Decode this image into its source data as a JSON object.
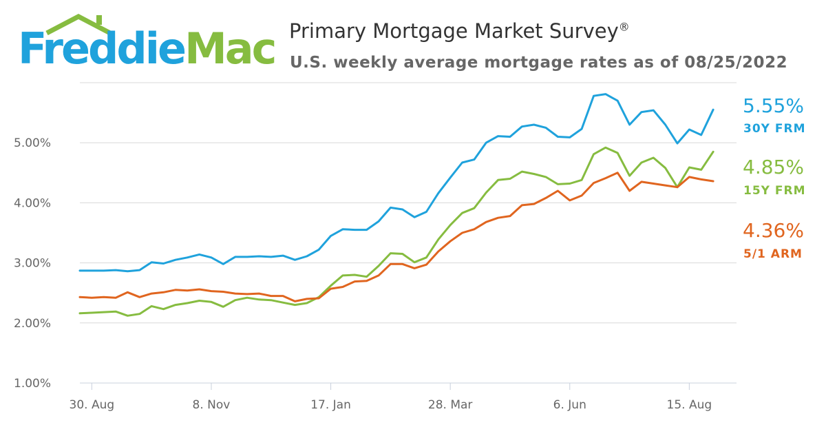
{
  "header": {
    "logo_part1": "Freddie",
    "logo_part2": "Mac",
    "title": "Primary Mortgage Market Survey",
    "title_mark": "®",
    "subtitle": "U.S. weekly average mortgage rates as of 08/25/2022"
  },
  "colors": {
    "brand_blue": "#1fa2dc",
    "brand_green": "#86bc40",
    "grid": "#d8d8d8",
    "axis_text": "#666666"
  },
  "chart_data": {
    "type": "line",
    "title": "Primary Mortgage Market Survey",
    "subtitle": "U.S. weekly average mortgage rates as of 08/25/2022",
    "x_tick_labels": [
      "30. Aug",
      "8. Nov",
      "17. Jan",
      "28. Mar",
      "6. Jun",
      "15. Aug"
    ],
    "x_tick_week_index": [
      1,
      11,
      21,
      31,
      41,
      51
    ],
    "y_tick_labels": [
      "1.00%",
      "2.00%",
      "3.00%",
      "4.00%",
      "5.00%"
    ],
    "y_tick_values": [
      1,
      2,
      3,
      4,
      5
    ],
    "ylim": [
      1,
      6
    ],
    "grid": true,
    "legend": "right-end labels",
    "series": [
      {
        "name": "30Y FRM",
        "end_value_label": "5.55%",
        "color": "#1fa2dc",
        "values": [
          2.87,
          2.87,
          2.87,
          2.88,
          2.86,
          2.88,
          3.01,
          2.99,
          3.05,
          3.09,
          3.14,
          3.09,
          2.98,
          3.1,
          3.1,
          3.11,
          3.1,
          3.12,
          3.05,
          3.11,
          3.22,
          3.45,
          3.56,
          3.55,
          3.55,
          3.69,
          3.92,
          3.89,
          3.76,
          3.85,
          4.16,
          4.42,
          4.67,
          4.72,
          5.0,
          5.11,
          5.1,
          5.27,
          5.3,
          5.25,
          5.1,
          5.09,
          5.23,
          5.78,
          5.81,
          5.7,
          5.3,
          5.51,
          5.54,
          5.3,
          4.99,
          5.22,
          5.13,
          5.55
        ]
      },
      {
        "name": "15Y FRM",
        "end_value_label": "4.85%",
        "color": "#86bc40",
        "values": [
          2.16,
          2.17,
          2.18,
          2.19,
          2.12,
          2.15,
          2.28,
          2.23,
          2.3,
          2.33,
          2.37,
          2.35,
          2.27,
          2.38,
          2.42,
          2.39,
          2.38,
          2.34,
          2.3,
          2.33,
          2.43,
          2.62,
          2.79,
          2.8,
          2.77,
          2.95,
          3.16,
          3.15,
          3.01,
          3.09,
          3.39,
          3.63,
          3.83,
          3.91,
          4.17,
          4.38,
          4.4,
          4.52,
          4.48,
          4.43,
          4.31,
          4.32,
          4.38,
          4.81,
          4.92,
          4.83,
          4.45,
          4.67,
          4.75,
          4.58,
          4.26,
          4.59,
          4.55,
          4.85
        ]
      },
      {
        "name": "5/1 ARM",
        "end_value_label": "4.36%",
        "color": "#e0651f",
        "values": [
          2.43,
          2.42,
          2.43,
          2.42,
          2.51,
          2.43,
          2.49,
          2.51,
          2.55,
          2.54,
          2.56,
          2.53,
          2.52,
          2.49,
          2.48,
          2.49,
          2.45,
          2.45,
          2.36,
          2.4,
          2.41,
          2.57,
          2.6,
          2.69,
          2.7,
          2.79,
          2.98,
          2.98,
          2.91,
          2.97,
          3.19,
          3.36,
          3.5,
          3.56,
          3.68,
          3.75,
          3.78,
          3.96,
          3.98,
          4.08,
          4.2,
          4.04,
          4.12,
          4.33,
          4.41,
          4.5,
          4.2,
          4.35,
          4.32,
          4.29,
          4.26,
          4.43,
          4.39,
          4.36
        ]
      }
    ]
  }
}
